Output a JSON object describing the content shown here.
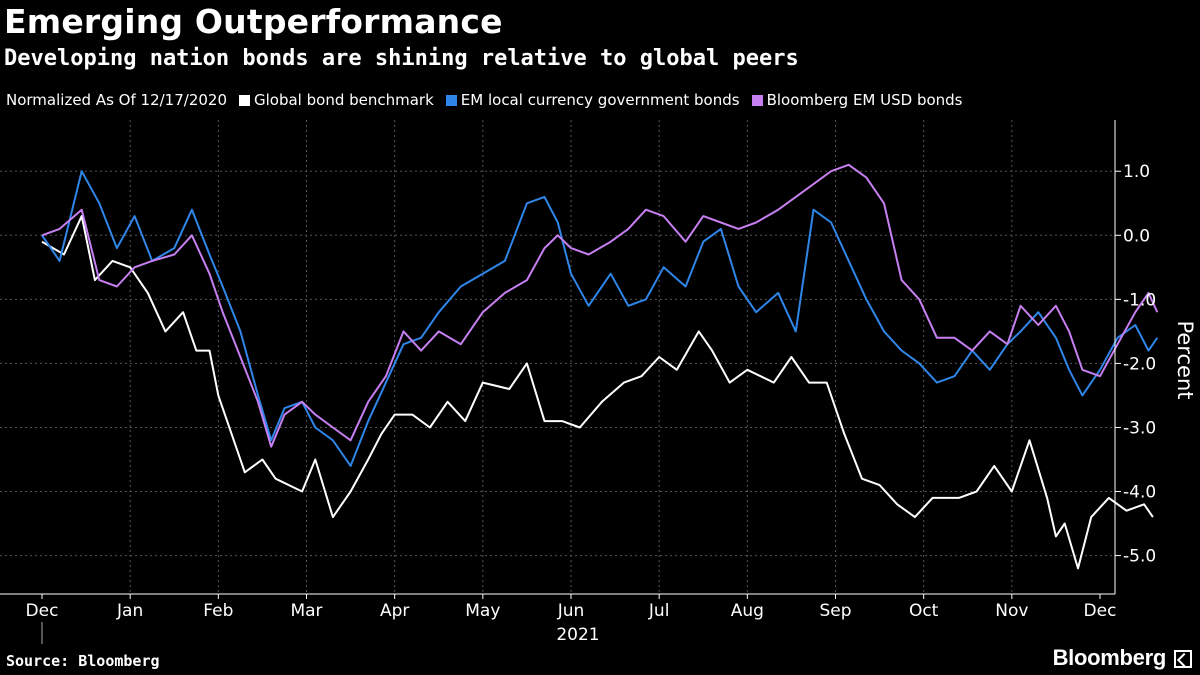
{
  "header": {
    "title": "Emerging Outperformance",
    "subtitle": "Developing nation bonds are shining relative to global peers"
  },
  "legend": {
    "note": "Normalized As Of 12/17/2020",
    "items": [
      {
        "label": "Global bond benchmark",
        "color": "#ffffff"
      },
      {
        "label": "EM local currency government bonds",
        "color": "#2f86e8"
      },
      {
        "label": "Bloomberg EM USD bonds",
        "color": "#c67ff0"
      }
    ]
  },
  "footer": {
    "source": "Source: Bloomberg",
    "brand": "Bloomberg"
  },
  "chart_data": {
    "type": "line",
    "title": "Emerging Outperformance",
    "ylabel": "Percent",
    "xlabel": "2021",
    "ylim": [
      -5.6,
      1.8
    ],
    "xlim": [
      0,
      12.8
    ],
    "yticks": [
      1.0,
      0.0,
      -1.0,
      -2.0,
      -3.0,
      -4.0,
      -5.0
    ],
    "ytick_labels": [
      "1.0",
      "0.0",
      "-1.0",
      "-2.0",
      "-3.0",
      "-4.0",
      "-5.0"
    ],
    "month_labels": [
      "Dec",
      "Jan",
      "Feb",
      "Mar",
      "Apr",
      "May",
      "Jun",
      "Jul",
      "Aug",
      "Sep",
      "Oct",
      "Nov",
      "Dec"
    ],
    "year_label": "2021",
    "series": [
      {
        "name": "Global bond benchmark",
        "color": "#ffffff",
        "x": [
          0,
          0.25,
          0.45,
          0.6,
          0.8,
          1.0,
          1.2,
          1.4,
          1.6,
          1.75,
          1.9,
          2.0,
          2.3,
          2.5,
          2.65,
          2.8,
          2.95,
          3.1,
          3.3,
          3.5,
          3.7,
          3.85,
          4.0,
          4.2,
          4.4,
          4.6,
          4.8,
          5.0,
          5.3,
          5.5,
          5.7,
          5.9,
          6.1,
          6.35,
          6.6,
          6.8,
          7.0,
          7.2,
          7.45,
          7.6,
          7.8,
          8.0,
          8.3,
          8.5,
          8.7,
          8.9,
          9.1,
          9.3,
          9.5,
          9.7,
          9.9,
          10.1,
          10.4,
          10.6,
          10.8,
          11.0,
          11.2,
          11.4,
          11.5,
          11.6,
          11.75,
          11.9,
          12.1,
          12.3,
          12.5,
          12.6
        ],
        "values": [
          -0.1,
          -0.3,
          0.3,
          -0.7,
          -0.4,
          -0.5,
          -0.9,
          -1.5,
          -1.2,
          -1.8,
          -1.8,
          -2.5,
          -3.7,
          -3.5,
          -3.8,
          -3.9,
          -4.0,
          -3.5,
          -4.4,
          -4.0,
          -3.5,
          -3.1,
          -2.8,
          -2.8,
          -3.0,
          -2.6,
          -2.9,
          -2.3,
          -2.4,
          -2.0,
          -2.9,
          -2.9,
          -3.0,
          -2.6,
          -2.3,
          -2.2,
          -1.9,
          -2.1,
          -1.5,
          -1.8,
          -2.3,
          -2.1,
          -2.3,
          -1.9,
          -2.3,
          -2.3,
          -3.1,
          -3.8,
          -3.9,
          -4.2,
          -4.4,
          -4.1,
          -4.1,
          -4.0,
          -3.6,
          -4.0,
          -3.2,
          -4.1,
          -4.7,
          -4.5,
          -5.2,
          -4.4,
          -4.1,
          -4.3,
          -4.2,
          -4.4
        ]
      },
      {
        "name": "EM local currency government bonds",
        "color": "#2f86e8",
        "x": [
          0,
          0.2,
          0.45,
          0.65,
          0.85,
          1.05,
          1.25,
          1.5,
          1.7,
          1.9,
          2.05,
          2.25,
          2.45,
          2.6,
          2.75,
          2.95,
          3.1,
          3.3,
          3.5,
          3.7,
          3.9,
          4.1,
          4.3,
          4.5,
          4.75,
          5.0,
          5.25,
          5.5,
          5.7,
          5.85,
          6.0,
          6.2,
          6.45,
          6.65,
          6.85,
          7.05,
          7.3,
          7.5,
          7.7,
          7.9,
          8.1,
          8.35,
          8.55,
          8.75,
          8.95,
          9.15,
          9.35,
          9.55,
          9.75,
          9.95,
          10.15,
          10.35,
          10.55,
          10.75,
          10.95,
          11.1,
          11.3,
          11.5,
          11.65,
          11.8,
          12.0,
          12.2,
          12.4,
          12.55,
          12.65
        ],
        "values": [
          0.0,
          -0.4,
          1.0,
          0.5,
          -0.2,
          0.3,
          -0.4,
          -0.2,
          0.4,
          -0.3,
          -0.8,
          -1.5,
          -2.5,
          -3.2,
          -2.7,
          -2.6,
          -3.0,
          -3.2,
          -3.6,
          -2.9,
          -2.3,
          -1.7,
          -1.6,
          -1.2,
          -0.8,
          -0.6,
          -0.4,
          0.5,
          0.6,
          0.2,
          -0.6,
          -1.1,
          -0.6,
          -1.1,
          -1.0,
          -0.5,
          -0.8,
          -0.1,
          0.1,
          -0.8,
          -1.2,
          -0.9,
          -1.5,
          0.4,
          0.2,
          -0.4,
          -1.0,
          -1.5,
          -1.8,
          -2.0,
          -2.3,
          -2.2,
          -1.8,
          -2.1,
          -1.7,
          -1.5,
          -1.2,
          -1.6,
          -2.1,
          -2.5,
          -2.1,
          -1.6,
          -1.4,
          -1.8,
          -1.6
        ]
      },
      {
        "name": "Bloomberg EM USD bonds",
        "color": "#c67ff0",
        "x": [
          0,
          0.2,
          0.45,
          0.65,
          0.85,
          1.05,
          1.25,
          1.5,
          1.7,
          1.9,
          2.05,
          2.25,
          2.45,
          2.6,
          2.75,
          2.95,
          3.1,
          3.3,
          3.5,
          3.7,
          3.9,
          4.1,
          4.3,
          4.5,
          4.75,
          5.0,
          5.25,
          5.5,
          5.7,
          5.85,
          6.0,
          6.2,
          6.45,
          6.65,
          6.85,
          7.05,
          7.3,
          7.5,
          7.7,
          7.9,
          8.1,
          8.35,
          8.55,
          8.75,
          8.95,
          9.15,
          9.35,
          9.55,
          9.75,
          9.95,
          10.15,
          10.35,
          10.55,
          10.75,
          10.95,
          11.1,
          11.3,
          11.5,
          11.65,
          11.8,
          12.0,
          12.2,
          12.4,
          12.55,
          12.65
        ],
        "values": [
          0.0,
          0.1,
          0.4,
          -0.7,
          -0.8,
          -0.5,
          -0.4,
          -0.3,
          0.0,
          -0.6,
          -1.2,
          -1.9,
          -2.6,
          -3.3,
          -2.8,
          -2.6,
          -2.8,
          -3.0,
          -3.2,
          -2.6,
          -2.2,
          -1.5,
          -1.8,
          -1.5,
          -1.7,
          -1.2,
          -0.9,
          -0.7,
          -0.2,
          0.0,
          -0.2,
          -0.3,
          -0.1,
          0.1,
          0.4,
          0.3,
          -0.1,
          0.3,
          0.2,
          0.1,
          0.2,
          0.4,
          0.6,
          0.8,
          1.0,
          1.1,
          0.9,
          0.5,
          -0.7,
          -1.0,
          -1.6,
          -1.6,
          -1.8,
          -1.5,
          -1.7,
          -1.1,
          -1.4,
          -1.1,
          -1.5,
          -2.1,
          -2.2,
          -1.7,
          -1.2,
          -0.9,
          -1.2
        ]
      }
    ]
  }
}
